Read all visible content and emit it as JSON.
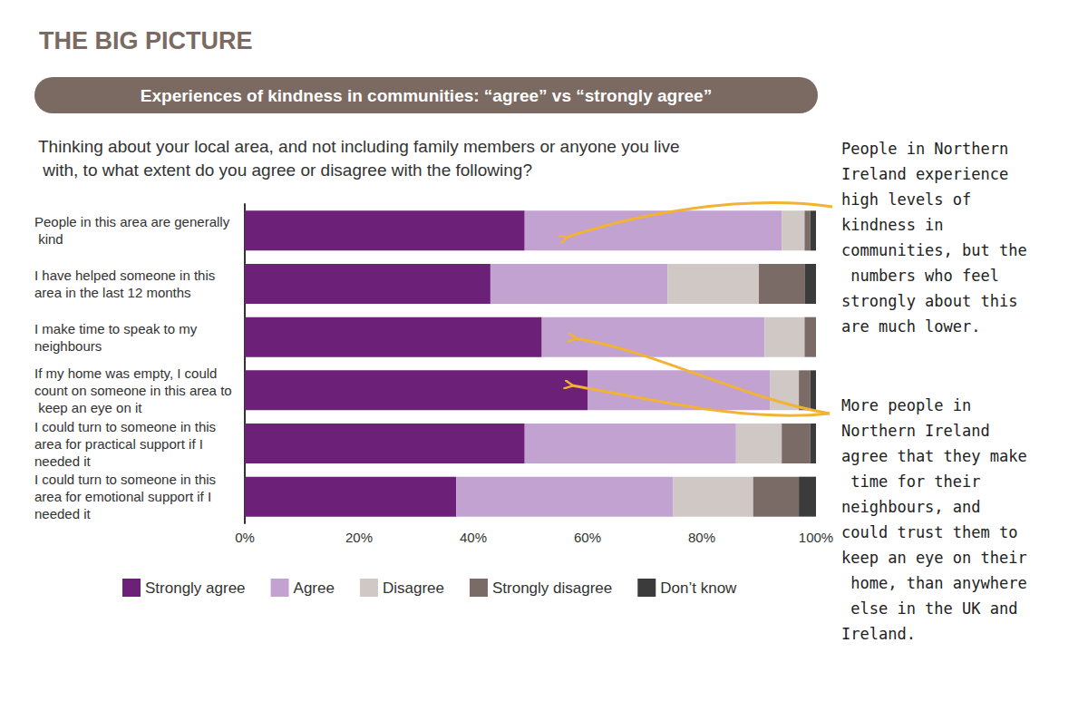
{
  "chart_data": {
    "type": "bar",
    "orientation": "horizontal",
    "stacked": true,
    "grid": false,
    "legend": "bottom",
    "heading": "THE BIG PICTURE",
    "title": "Experiences of kindness in communities: “agree” vs “strongly agree”",
    "subtitle": "Thinking about your local area, and not including family members or anyone you live with, to what extent do you agree or disagree with the following?",
    "annotations": [
      "People in Northern Ireland experience high levels of kindness in communities, but the numbers who feel strongly about this are much lower.",
      "More people in Northern Ireland agree that they make time for their neighbours, and could trust them to keep an eye on their home, than anywhere else in the UK and Ireland."
    ],
    "categories": [
      "People in this area are generally kind",
      "I have helped someone in this area in the last 12 months",
      "I make time to speak to my neighbours",
      "If my home was empty, I could count on someone in this area to keep an eye on it",
      "I could turn to someone in this area for practical support if I needed it",
      "I could turn to someone in this area for emotional support if I needed it"
    ],
    "series": [
      {
        "name": "Strongly agree",
        "color": "#6d2077",
        "values": [
          49,
          43,
          52,
          60,
          49,
          37
        ]
      },
      {
        "name": "Agree",
        "color": "#c1a2d1",
        "values": [
          45,
          31,
          39,
          32,
          37,
          38
        ]
      },
      {
        "name": "Disagree",
        "color": "#cfc8c5",
        "values": [
          4,
          16,
          7,
          5,
          8,
          14
        ]
      },
      {
        "name": "Strongly disagree",
        "color": "#7b6b67",
        "values": [
          1,
          8,
          2,
          2,
          5,
          8
        ]
      },
      {
        "name": "Don’t know",
        "color": "#3b3b3b",
        "values": [
          1,
          2,
          0,
          1,
          1,
          3
        ]
      }
    ],
    "xlim": [
      0,
      100
    ],
    "xticks": [
      {
        "value": 0,
        "label": "0%"
      },
      {
        "value": 20,
        "label": "20%"
      },
      {
        "value": 40,
        "label": "40%"
      },
      {
        "value": 60,
        "label": "60%"
      },
      {
        "value": 80,
        "label": "80%"
      },
      {
        "value": 100,
        "label": "100%"
      }
    ]
  }
}
